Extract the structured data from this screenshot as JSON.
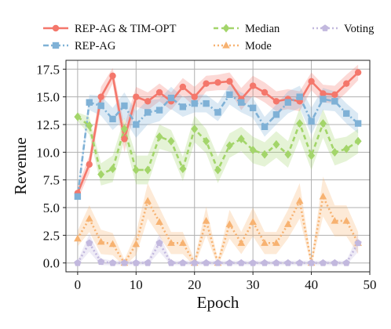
{
  "chart_data": {
    "type": "line",
    "xlabel": "Epoch",
    "ylabel": "Revenue",
    "xlim": [
      -2,
      50
    ],
    "ylim": [
      -0.8,
      18.3
    ],
    "xticks": [
      "0",
      "10",
      "20",
      "30",
      "40",
      "50"
    ],
    "yticks": [
      "0.0",
      "2.5",
      "5.0",
      "7.5",
      "10.0",
      "12.5",
      "15.0",
      "17.5"
    ],
    "grid": true,
    "legend_position": "top (above plot)",
    "x": [
      0,
      2,
      4,
      6,
      8,
      10,
      12,
      14,
      16,
      18,
      20,
      22,
      24,
      26,
      28,
      30,
      32,
      34,
      36,
      38,
      40,
      42,
      44,
      46,
      48
    ],
    "series": [
      {
        "name": "REP-AG & TIM-OPT",
        "color": "#f4776b",
        "marker": "circle",
        "linestyle": "solid",
        "values": [
          6.3,
          8.9,
          15.0,
          16.9,
          11.2,
          15.0,
          14.6,
          15.4,
          14.6,
          15.9,
          15.0,
          16.2,
          16.3,
          16.4,
          14.8,
          16.0,
          15.4,
          14.6,
          14.8,
          14.6,
          16.4,
          15.3,
          15.2,
          16.2,
          17.2
        ],
        "band": [
          0.6,
          0.8,
          0.9,
          0.7,
          1.2,
          0.9,
          0.8,
          0.8,
          0.8,
          0.8,
          0.9,
          0.7,
          0.7,
          0.8,
          1.0,
          0.9,
          0.9,
          0.9,
          0.9,
          0.9,
          0.8,
          0.8,
          0.8,
          0.8,
          0.7
        ]
      },
      {
        "name": "REP-AG",
        "color": "#7fb1d6",
        "marker": "square",
        "linestyle": "dashdot",
        "values": [
          6.0,
          14.5,
          14.2,
          13.0,
          14.2,
          12.5,
          13.6,
          13.8,
          14.9,
          14.1,
          14.4,
          14.4,
          13.6,
          15.2,
          14.5,
          14.0,
          12.3,
          13.4,
          14.5,
          15.0,
          12.8,
          14.8,
          14.6,
          13.5,
          12.6
        ],
        "band": [
          0.5,
          0.7,
          0.9,
          1.0,
          1.2,
          1.2,
          1.1,
          1.0,
          1.0,
          0.9,
          0.8,
          0.8,
          0.8,
          0.9,
          0.9,
          0.9,
          0.9,
          0.9,
          1.0,
          1.0,
          1.2,
          1.0,
          0.9,
          0.9,
          0.9
        ]
      },
      {
        "name": "Median",
        "color": "#a3d56a",
        "marker": "diamond",
        "linestyle": "dashed",
        "values": [
          13.2,
          12.4,
          8.0,
          8.5,
          12.1,
          8.4,
          8.4,
          11.4,
          11.0,
          8.5,
          12.1,
          11.0,
          8.4,
          10.6,
          11.2,
          10.2,
          9.8,
          10.7,
          9.8,
          12.6,
          9.7,
          12.6,
          10.0,
          10.3,
          11.0
        ],
        "band": [
          0.4,
          0.8,
          1.0,
          1.2,
          1.0,
          1.3,
          1.3,
          1.1,
          1.0,
          1.1,
          1.2,
          1.1,
          1.2,
          1.1,
          1.1,
          1.2,
          1.1,
          1.2,
          1.2,
          1.4,
          1.3,
          1.3,
          1.2,
          1.1,
          1.1
        ]
      },
      {
        "name": "Mode",
        "color": "#f7b271",
        "marker": "triangle",
        "linestyle": "dotted",
        "values": [
          2.2,
          4.0,
          1.9,
          1.7,
          0.0,
          1.7,
          5.6,
          3.7,
          1.8,
          1.8,
          0.0,
          3.8,
          0.0,
          3.5,
          1.8,
          3.7,
          1.8,
          1.8,
          3.5,
          5.6,
          0.0,
          6.0,
          3.8,
          3.8,
          1.8
        ],
        "band": [
          0.7,
          1.2,
          1.1,
          1.0,
          0.3,
          1.0,
          1.6,
          1.3,
          1.0,
          1.0,
          0.3,
          1.3,
          0.3,
          1.3,
          1.0,
          1.3,
          1.0,
          1.0,
          1.3,
          1.6,
          0.3,
          1.8,
          1.4,
          1.4,
          1.0
        ]
      },
      {
        "name": "Voting",
        "color": "#c2b8de",
        "marker": "pentagon",
        "linestyle": "dotted",
        "values": [
          0.0,
          1.8,
          0.1,
          0.0,
          0.0,
          0.0,
          0.0,
          1.8,
          0.0,
          0.0,
          0.0,
          0.0,
          0.0,
          0.0,
          0.0,
          0.0,
          0.0,
          0.0,
          0.0,
          0.0,
          0.0,
          0.0,
          0.0,
          0.0,
          1.8
        ],
        "band": [
          0.2,
          0.8,
          0.3,
          0.2,
          0.2,
          0.2,
          0.2,
          0.8,
          0.2,
          0.2,
          0.2,
          0.2,
          0.2,
          0.2,
          0.2,
          0.2,
          0.2,
          0.2,
          0.2,
          0.2,
          0.2,
          0.2,
          0.2,
          0.2,
          0.8
        ]
      }
    ]
  }
}
